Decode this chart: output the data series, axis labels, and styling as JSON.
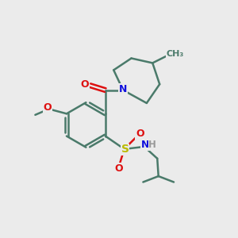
{
  "bg_color": "#ebebeb",
  "bond_color": "#4a7a6a",
  "N_color": "#1010dd",
  "O_color": "#dd1010",
  "S_color": "#bbbb00",
  "H_color": "#999999",
  "line_width": 1.8,
  "xlim": [
    0.0,
    1.0
  ],
  "ylim": [
    0.0,
    1.0
  ]
}
